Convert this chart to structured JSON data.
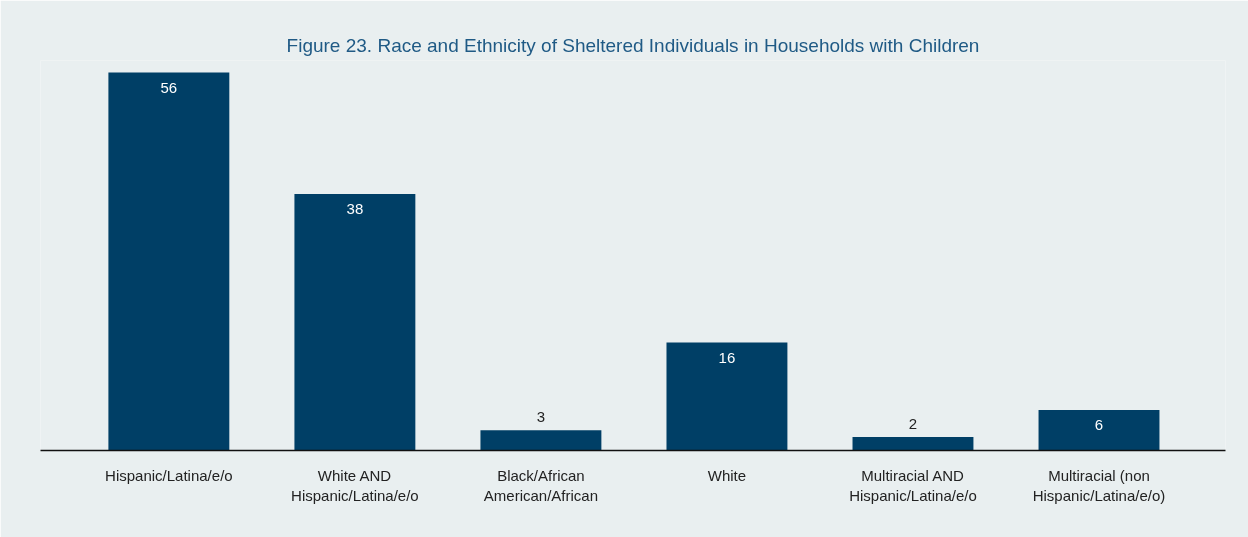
{
  "chart_data": {
    "type": "bar",
    "title": "Figure 23. Race and Ethnicity of Sheltered Individuals in Households with Children",
    "categories": [
      "Hispanic/Latina/e/o",
      "White AND Hispanic/Latina/e/o",
      "Black/African American/African",
      "White",
      "Multiracial AND Hispanic/Latina/e/o",
      "Multiracial (non Hispanic/Latina/e/o)"
    ],
    "values": [
      56,
      38,
      3,
      16,
      2,
      6
    ],
    "color": "#003f66",
    "data_labels": true
  }
}
